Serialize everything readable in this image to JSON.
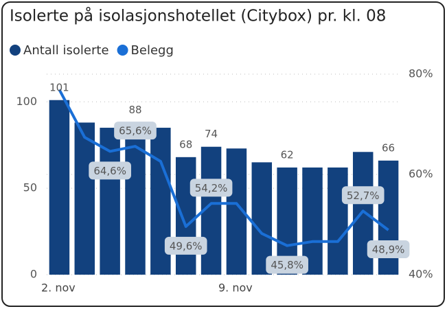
{
  "chart_data": {
    "type": "bar-line",
    "title": "Isolerte på isolasjonshotellet (Citybox) pr. kl. 08",
    "categories": [
      "2. nov",
      null,
      null,
      null,
      null,
      null,
      null,
      "9. nov",
      null,
      null,
      null,
      null,
      null,
      null
    ],
    "series": [
      {
        "name": "Antall isolerte",
        "color": "#12417e",
        "type": "bar",
        "values": [
          101,
          88,
          85,
          88,
          85,
          68,
          74,
          73,
          65,
          62,
          62,
          62,
          71,
          66
        ],
        "value_labels": [
          "101",
          null,
          null,
          "88",
          null,
          "68",
          "74",
          null,
          null,
          "62",
          null,
          null,
          null,
          "66"
        ]
      },
      {
        "name": "Belegg",
        "color": "#1a6fd6",
        "type": "line",
        "axis": "y2",
        "values": [
          76.9,
          67.4,
          64.6,
          65.6,
          62.6,
          49.6,
          54.2,
          54.2,
          48.2,
          45.8,
          46.6,
          46.6,
          52.7,
          48.9
        ],
        "value_labels": [
          null,
          null,
          "64,6%",
          "65,6%",
          null,
          "49,6%",
          "54,2%",
          null,
          null,
          "45,8%",
          null,
          null,
          "52,7%",
          "48,9%"
        ]
      }
    ],
    "ylim": [
      0,
      116
    ],
    "yticks": [
      0,
      50,
      100
    ],
    "y2lim": [
      40,
      80
    ],
    "y2ticks": [
      {
        "value": 40,
        "label": "40%"
      },
      {
        "value": 60,
        "label": "60%"
      },
      {
        "value": 80,
        "label": "80%"
      }
    ],
    "grid": true
  }
}
